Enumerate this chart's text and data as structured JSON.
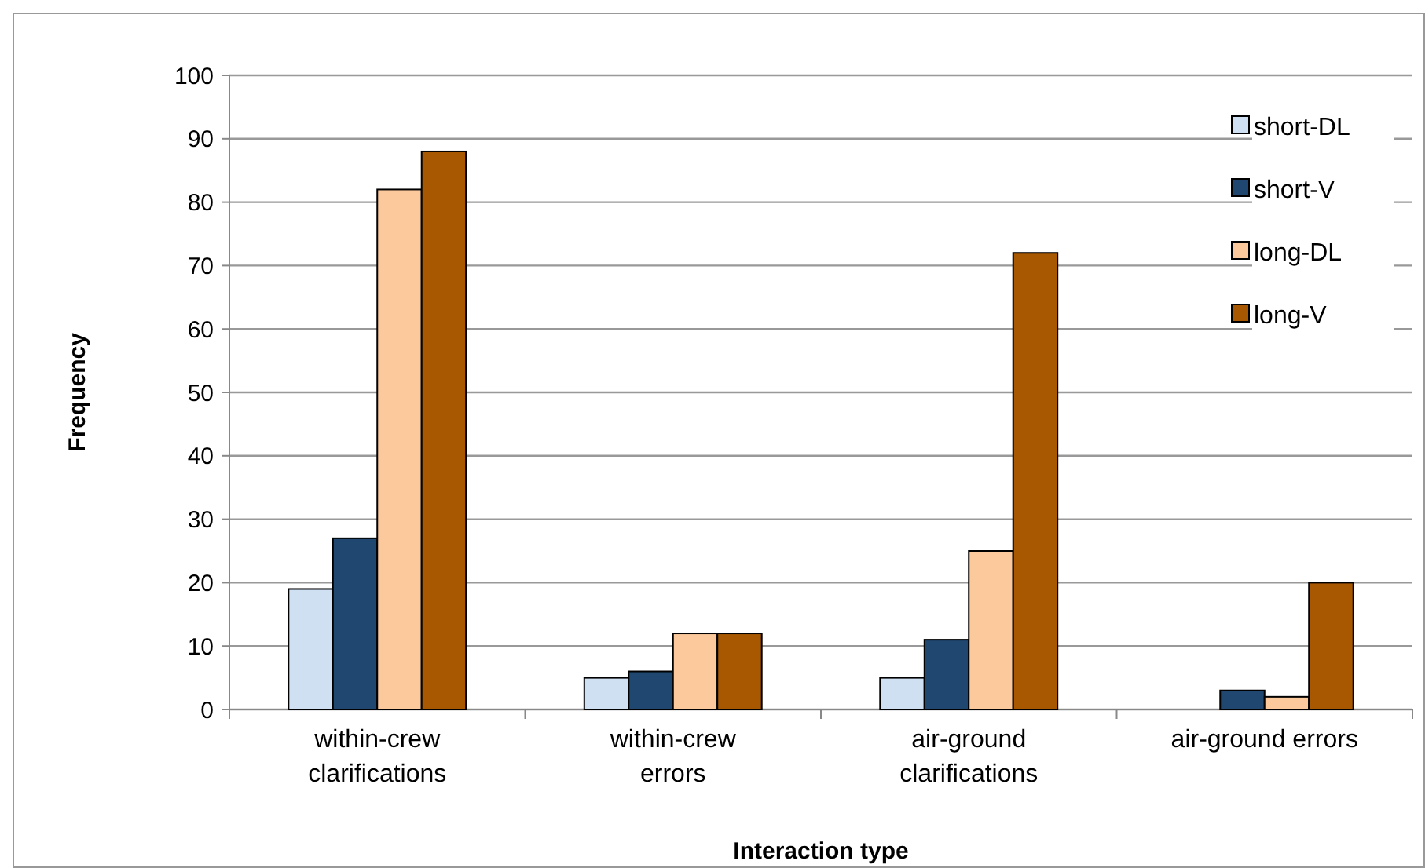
{
  "chart_data": {
    "type": "bar",
    "xlabel": "Interaction type",
    "ylabel": "Frequency",
    "categories": [
      "within-crew clarifications",
      "within-crew errors",
      "air-ground clarifications",
      "air-ground errors"
    ],
    "series": [
      {
        "name": "short-DL",
        "color": "#cfe0f3",
        "values": [
          19,
          5,
          5,
          0
        ]
      },
      {
        "name": "short-V",
        "color": "#1f4770",
        "values": [
          27,
          6,
          11,
          3
        ]
      },
      {
        "name": "long-DL",
        "color": "#fbc99c",
        "values": [
          82,
          12,
          25,
          2
        ]
      },
      {
        "name": "long-V",
        "color": "#a85800",
        "values": [
          88,
          12,
          72,
          20
        ]
      }
    ],
    "ylim": [
      0,
      100
    ],
    "yticks": [
      0,
      10,
      20,
      30,
      40,
      50,
      60,
      70,
      80,
      90,
      100
    ],
    "grid": "y",
    "legend": "right"
  }
}
